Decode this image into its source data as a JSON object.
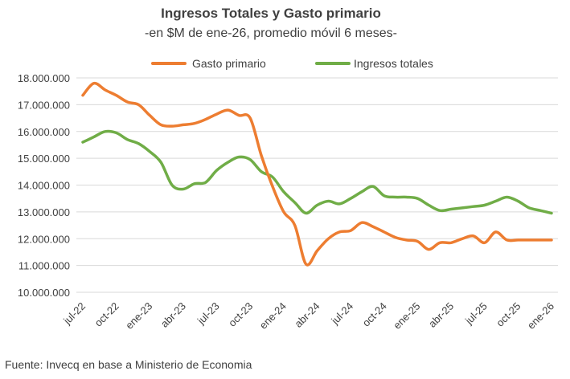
{
  "chart_data": {
    "type": "line",
    "title": "Ingresos Totales y Gasto primario",
    "subtitle": "-en $M de ene-26, promedio móvil 6 meses-",
    "source": "Fuente: Invecq en base a Ministerio de Economia",
    "ylim": [
      10000000,
      18000000
    ],
    "yticks": [
      10000000,
      11000000,
      12000000,
      13000000,
      14000000,
      15000000,
      16000000,
      17000000,
      18000000
    ],
    "ytick_labels": [
      "10.000.000",
      "11.000.000",
      "12.000.000",
      "13.000.000",
      "14.000.000",
      "15.000.000",
      "16.000.000",
      "17.000.000",
      "18.000.000"
    ],
    "grid": true,
    "legend_position": "top",
    "x": [
      "jul-22",
      "ago-22",
      "sep-22",
      "oct-22",
      "nov-22",
      "dic-22",
      "ene-23",
      "feb-23",
      "mar-23",
      "abr-23",
      "may-23",
      "jun-23",
      "jul-23",
      "ago-23",
      "sep-23",
      "oct-23",
      "nov-23",
      "dic-23",
      "ene-24",
      "feb-24",
      "mar-24",
      "abr-24",
      "may-24",
      "jun-24",
      "jul-24",
      "ago-24",
      "sep-24",
      "oct-24",
      "nov-24",
      "dic-24",
      "ene-25",
      "feb-25",
      "mar-25",
      "abr-25",
      "may-25",
      "jun-25",
      "jul-25",
      "ago-25",
      "sep-25",
      "oct-25",
      "nov-25",
      "dic-25",
      "ene-26"
    ],
    "x_tick_labels": [
      "jul-22",
      "oct-22",
      "ene-23",
      "abr-23",
      "jul-23",
      "oct-23",
      "ene-24",
      "abr-24",
      "jul-24",
      "oct-24",
      "ene-25",
      "abr-25",
      "jul-25",
      "oct-25",
      "ene-26"
    ],
    "series": [
      {
        "name": "Gasto primario",
        "color": "#ED7D31",
        "values": [
          17350000,
          17800000,
          17550000,
          17350000,
          17100000,
          17000000,
          16600000,
          16250000,
          16200000,
          16250000,
          16300000,
          16450000,
          16650000,
          16800000,
          16600000,
          16500000,
          15100000,
          13950000,
          13000000,
          12500000,
          11050000,
          11550000,
          12000000,
          12250000,
          12300000,
          12600000,
          12450000,
          12250000,
          12050000,
          11950000,
          11900000,
          11600000,
          11850000,
          11850000,
          12000000,
          12100000,
          11850000,
          12250000,
          11950000,
          11950000,
          11950000,
          11950000,
          11950000
        ]
      },
      {
        "name": "Ingresos totales",
        "color": "#70AD47",
        "values": [
          15600000,
          15800000,
          16000000,
          15950000,
          15700000,
          15550000,
          15250000,
          14850000,
          14000000,
          13850000,
          14050000,
          14100000,
          14550000,
          14850000,
          15050000,
          14950000,
          14500000,
          14300000,
          13750000,
          13350000,
          12950000,
          13250000,
          13400000,
          13300000,
          13500000,
          13750000,
          13950000,
          13600000,
          13550000,
          13550000,
          13500000,
          13250000,
          13050000,
          13100000,
          13150000,
          13200000,
          13250000,
          13400000,
          13550000,
          13400000,
          13150000,
          13050000,
          12950000
        ]
      }
    ]
  }
}
